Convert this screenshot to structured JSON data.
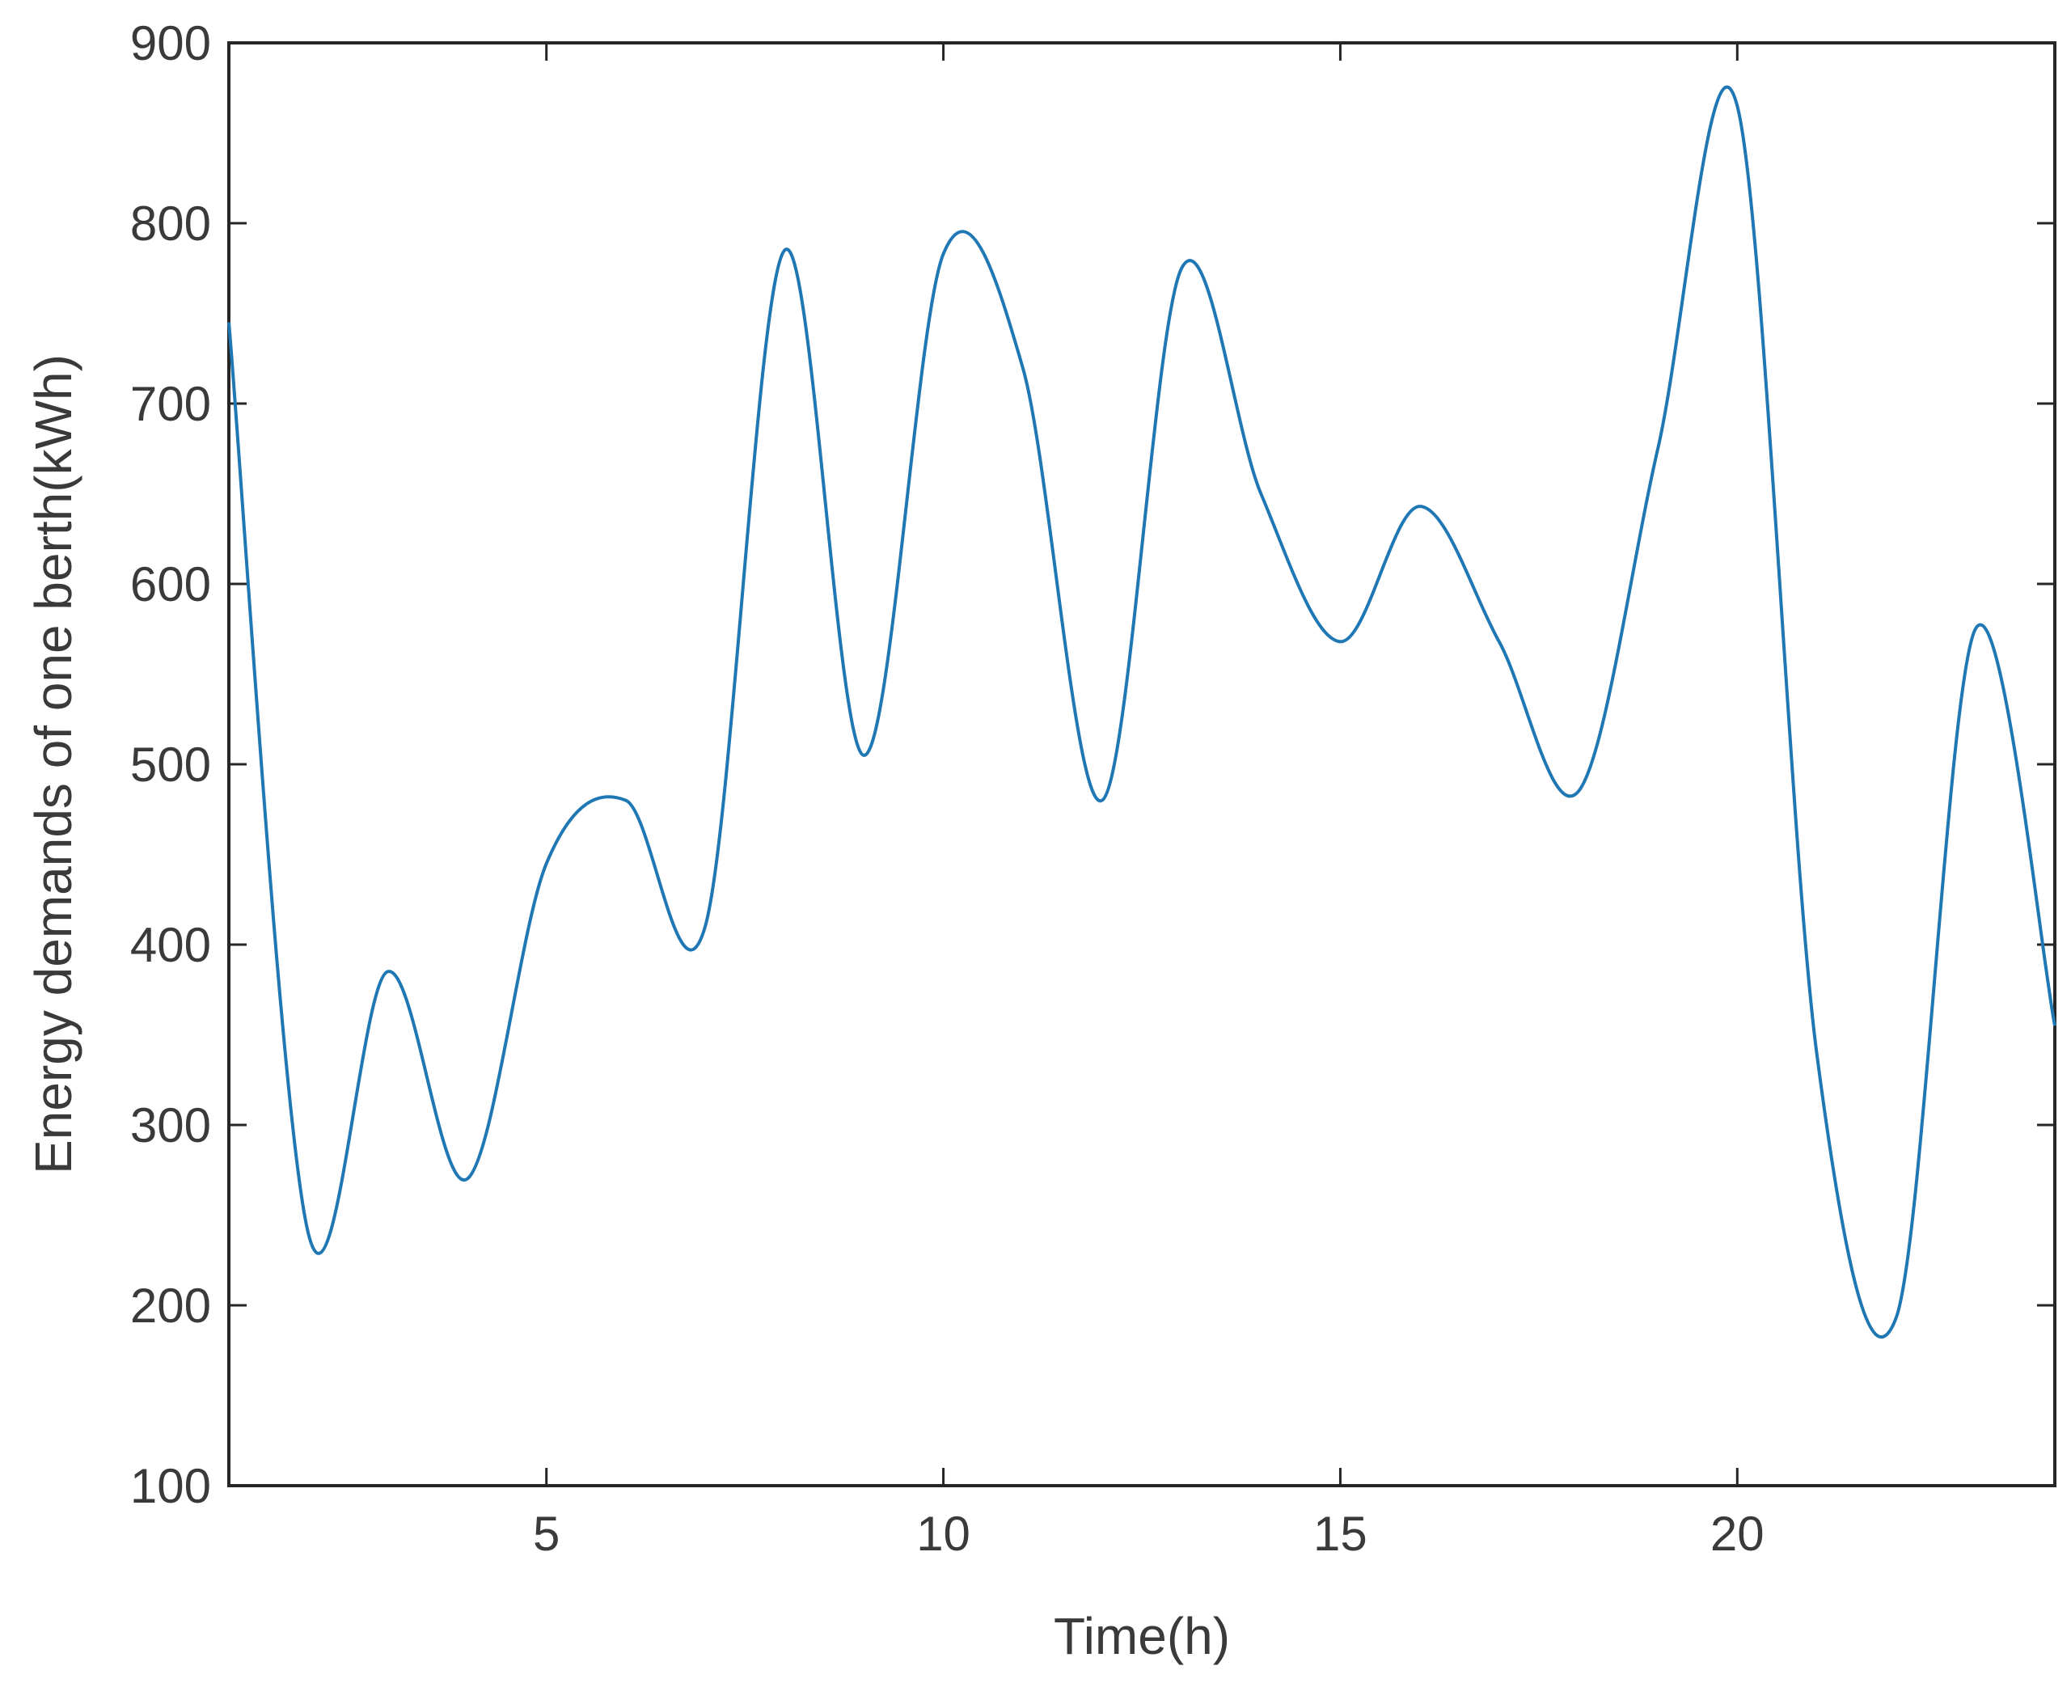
{
  "chart_data": {
    "type": "line",
    "title": "",
    "xlabel": "Time(h)",
    "ylabel": "Energy demands of one berth(kWh)",
    "xlim": [
      1,
      24
    ],
    "ylim": [
      100,
      900
    ],
    "xticks": [
      5,
      10,
      15,
      20
    ],
    "yticks": [
      100,
      200,
      300,
      400,
      500,
      600,
      700,
      800,
      900
    ],
    "grid": false,
    "legend": "none",
    "series": [
      {
        "color": "#1f77b4",
        "x": [
          1,
          2,
          3,
          4,
          5,
          6,
          7,
          8,
          9,
          10,
          11,
          12,
          13,
          14,
          15,
          16,
          17,
          18,
          19,
          20,
          21,
          22,
          23,
          24
        ],
        "y": [
          745,
          240,
          385,
          270,
          445,
          480,
          410,
          785,
          505,
          783,
          720,
          480,
          775,
          650,
          568,
          643,
          568,
          485,
          675,
          865,
          340,
          193,
          575,
          355
        ]
      }
    ]
  }
}
